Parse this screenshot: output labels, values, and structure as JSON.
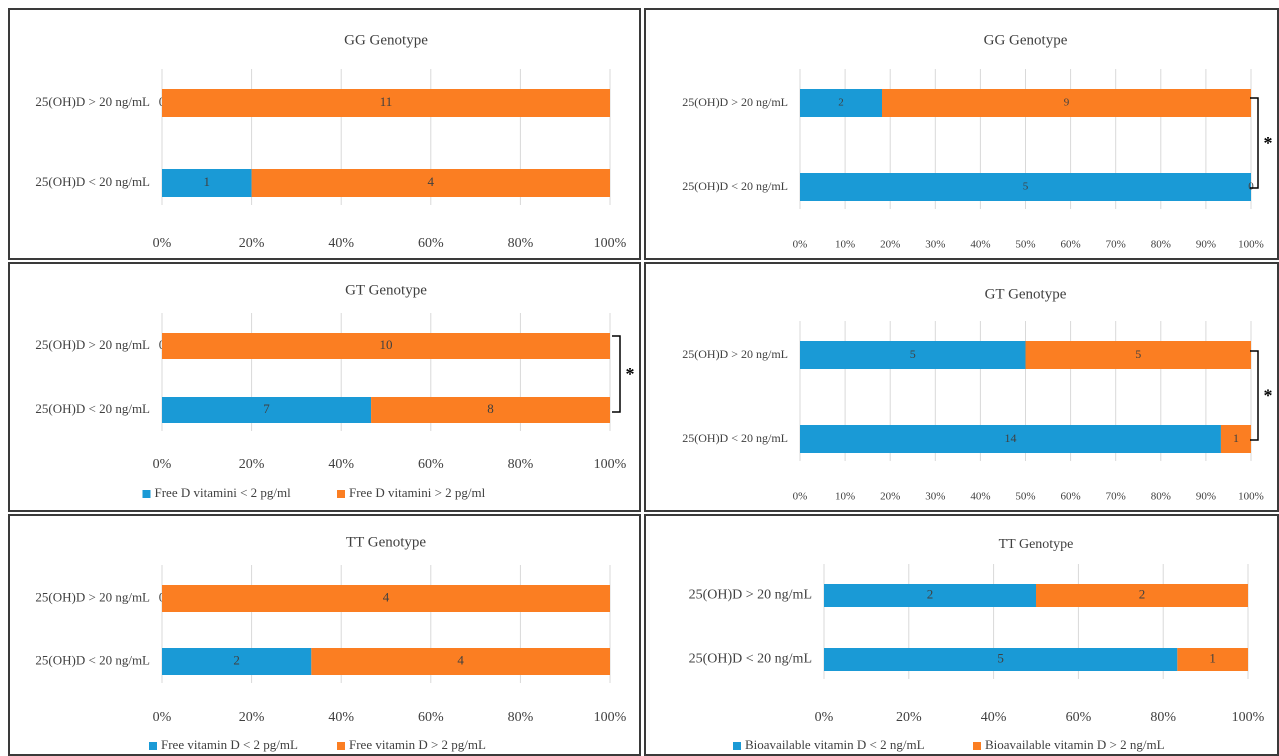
{
  "chart_data": [
    {
      "type": "bar",
      "orientation": "horizontal",
      "stacked": "percent",
      "title": "GG Genotype",
      "categories": [
        "25(OH)D > 20 ng/mL",
        "25(OH)D < 20 ng/mL"
      ],
      "series": [
        {
          "values": [
            0,
            1
          ]
        },
        {
          "values": [
            11,
            4
          ]
        }
      ],
      "xlim": [
        0,
        100
      ],
      "xticks": [
        "0%",
        "20%",
        "40%",
        "60%",
        "80%",
        "100%"
      ],
      "significance": "",
      "legend": []
    },
    {
      "type": "bar",
      "orientation": "horizontal",
      "stacked": "percent",
      "title": "GG Genotype",
      "categories": [
        "25(OH)D > 20 ng/mL",
        "25(OH)D < 20 ng/mL"
      ],
      "series": [
        {
          "values": [
            2,
            5
          ]
        },
        {
          "values": [
            9,
            0
          ]
        }
      ],
      "xlim": [
        0,
        100
      ],
      "xticks": [
        "0%",
        "10%",
        "20%",
        "30%",
        "40%",
        "50%",
        "60%",
        "70%",
        "80%",
        "90%",
        "100%"
      ],
      "significance": "*",
      "legend": []
    },
    {
      "type": "bar",
      "orientation": "horizontal",
      "stacked": "percent",
      "title": "GT Genotype",
      "categories": [
        "25(OH)D > 20 ng/mL",
        "25(OH)D < 20 ng/mL"
      ],
      "series": [
        {
          "name": "Free D vitamini < 2 pg/ml",
          "values": [
            0,
            7
          ]
        },
        {
          "name": "Free D vitamini > 2 pg/ml",
          "values": [
            10,
            8
          ]
        }
      ],
      "xlim": [
        0,
        100
      ],
      "xticks": [
        "0%",
        "20%",
        "40%",
        "60%",
        "80%",
        "100%"
      ],
      "significance": "*",
      "legend": [
        "Free D vitamini < 2 pg/ml",
        "Free D vitamini > 2 pg/ml"
      ]
    },
    {
      "type": "bar",
      "orientation": "horizontal",
      "stacked": "percent",
      "title": "GT Genotype",
      "categories": [
        "25(OH)D > 20 ng/mL",
        "25(OH)D < 20 ng/mL"
      ],
      "series": [
        {
          "values": [
            5,
            14
          ]
        },
        {
          "values": [
            5,
            1
          ]
        }
      ],
      "xlim": [
        0,
        100
      ],
      "xticks": [
        "0%",
        "10%",
        "20%",
        "30%",
        "40%",
        "50%",
        "60%",
        "70%",
        "80%",
        "90%",
        "100%"
      ],
      "significance": "*",
      "legend": []
    },
    {
      "type": "bar",
      "orientation": "horizontal",
      "stacked": "percent",
      "title": "TT Genotype",
      "categories": [
        "25(OH)D > 20 ng/mL",
        "25(OH)D < 20 ng/mL"
      ],
      "series": [
        {
          "name": "Free vitamin D < 2 pg/mL",
          "values": [
            0,
            2
          ]
        },
        {
          "name": "Free vitamin D > 2 pg/mL",
          "values": [
            4,
            4
          ]
        }
      ],
      "xlim": [
        0,
        100
      ],
      "xticks": [
        "0%",
        "20%",
        "40%",
        "60%",
        "80%",
        "100%"
      ],
      "significance": "",
      "legend": [
        "Free vitamin D < 2 pg/mL",
        "Free vitamin D > 2 pg/mL"
      ]
    },
    {
      "type": "bar",
      "orientation": "horizontal",
      "stacked": "percent",
      "title": "TT Genotype",
      "categories": [
        "25(OH)D > 20 ng/mL",
        "25(OH)D < 20 ng/mL"
      ],
      "series": [
        {
          "name": "Bioavailable vitamin D < 2 ng/mL",
          "values": [
            2,
            5
          ]
        },
        {
          "name": "Bioavailable vitamin D > 2 ng/mL",
          "values": [
            2,
            1
          ]
        }
      ],
      "xlim": [
        0,
        100
      ],
      "xticks": [
        "0%",
        "20%",
        "40%",
        "60%",
        "80%",
        "100%"
      ],
      "significance": "",
      "legend": [
        "Bioavailable vitamin D < 2 ng/mL",
        "Bioavailable vitamin D > 2 ng/mL"
      ]
    }
  ],
  "colors": {
    "series_low": "#1a9ad6",
    "series_high": "#fb7e22",
    "grid": "#d9d9d9",
    "text": "#404040",
    "border": "#3a3a3a"
  }
}
